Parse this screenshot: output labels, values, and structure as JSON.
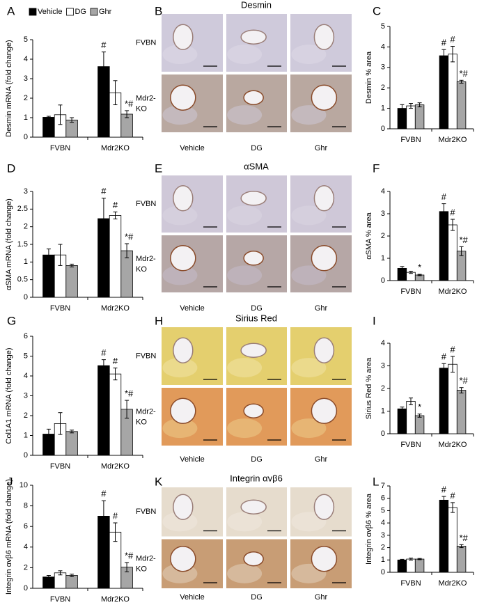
{
  "chart_data": [
    {
      "type": "bar",
      "panel": "A",
      "ylabel": "Desmin mRNA (fold change)",
      "categories": [
        "FVBN",
        "Mdr2KO"
      ],
      "legend": "top-left",
      "series": [
        {
          "name": "Vehicle",
          "color": "#000000",
          "values": [
            1.02,
            3.62
          ],
          "errors": [
            0.05,
            0.75
          ],
          "annotations": [
            null,
            "#"
          ]
        },
        {
          "name": "DG",
          "color": "#ffffff",
          "values": [
            1.15,
            2.28
          ],
          "errors": [
            0.5,
            0.62
          ],
          "annotations": [
            null,
            null
          ]
        },
        {
          "name": "Ghr",
          "color": "#a6a6a6",
          "values": [
            0.88,
            1.18
          ],
          "errors": [
            0.12,
            0.18
          ],
          "annotations": [
            null,
            "*#"
          ]
        }
      ],
      "ylim": [
        0,
        5
      ],
      "yticks": [
        0,
        1,
        2,
        3,
        4,
        5
      ]
    },
    {
      "type": "bar",
      "panel": "C",
      "ylabel": "Desmin % area",
      "categories": [
        "FVBN",
        "Mdr2KO"
      ],
      "series": [
        {
          "color": "#000000",
          "values": [
            1.0,
            3.57
          ],
          "errors": [
            0.18,
            0.3
          ],
          "annotations": [
            null,
            "#"
          ]
        },
        {
          "color": "#ffffff",
          "values": [
            1.12,
            3.65
          ],
          "errors": [
            0.12,
            0.38
          ],
          "annotations": [
            null,
            "#"
          ]
        },
        {
          "color": "#a6a6a6",
          "values": [
            1.17,
            2.3
          ],
          "errors": [
            0.1,
            0.07
          ],
          "annotations": [
            null,
            "*#"
          ]
        }
      ],
      "ylim": [
        0,
        5
      ],
      "yticks": [
        0,
        1,
        2,
        3,
        4,
        5
      ]
    },
    {
      "type": "bar",
      "panel": "D",
      "ylabel": "αSMA mRNA (fold change)",
      "categories": [
        "FVBN",
        "Mdr2KO"
      ],
      "series": [
        {
          "color": "#000000",
          "values": [
            1.2,
            2.23
          ],
          "errors": [
            0.17,
            0.58
          ],
          "annotations": [
            null,
            "#"
          ]
        },
        {
          "color": "#ffffff",
          "values": [
            1.2,
            2.32
          ],
          "errors": [
            0.3,
            0.1
          ],
          "annotations": [
            null,
            "#"
          ]
        },
        {
          "color": "#a6a6a6",
          "values": [
            0.9,
            1.32
          ],
          "errors": [
            0.04,
            0.2
          ],
          "annotations": [
            null,
            "*#"
          ]
        }
      ],
      "ylim": [
        0,
        3
      ],
      "yticks": [
        0,
        0.5,
        1,
        1.5,
        2,
        2.5,
        3
      ]
    },
    {
      "type": "bar",
      "panel": "F",
      "ylabel": "αSMA % area",
      "categories": [
        "FVBN",
        "Mdr2KO"
      ],
      "series": [
        {
          "color": "#000000",
          "values": [
            0.55,
            3.1
          ],
          "errors": [
            0.08,
            0.35
          ],
          "annotations": [
            null,
            "#"
          ]
        },
        {
          "color": "#ffffff",
          "values": [
            0.37,
            2.5
          ],
          "errors": [
            0.05,
            0.25
          ],
          "annotations": [
            null,
            "#"
          ]
        },
        {
          "color": "#a6a6a6",
          "values": [
            0.25,
            1.32
          ],
          "errors": [
            0.03,
            0.2
          ],
          "annotations": [
            "*",
            "*#"
          ]
        }
      ],
      "ylim": [
        0,
        4
      ],
      "yticks": [
        0,
        1,
        2,
        3,
        4
      ]
    },
    {
      "type": "bar",
      "panel": "G",
      "ylabel": "Col1A1 mRNA (fold change)",
      "categories": [
        "FVBN",
        "Mdr2KO"
      ],
      "series": [
        {
          "color": "#000000",
          "values": [
            1.07,
            4.52
          ],
          "errors": [
            0.25,
            0.3
          ],
          "annotations": [
            null,
            "#"
          ]
        },
        {
          "color": "#ffffff",
          "values": [
            1.6,
            4.1
          ],
          "errors": [
            0.55,
            0.3
          ],
          "annotations": [
            null,
            "#"
          ]
        },
        {
          "color": "#a6a6a6",
          "values": [
            1.2,
            2.32
          ],
          "errors": [
            0.07,
            0.45
          ],
          "annotations": [
            null,
            "*#"
          ]
        }
      ],
      "ylim": [
        0,
        6
      ],
      "yticks": [
        0,
        1,
        2,
        3,
        4,
        5,
        6
      ]
    },
    {
      "type": "bar",
      "panel": "I",
      "ylabel": "Sirius Red % area",
      "categories": [
        "FVBN",
        "Mdr2KO"
      ],
      "series": [
        {
          "color": "#000000",
          "values": [
            1.1,
            2.9
          ],
          "errors": [
            0.08,
            0.2
          ],
          "annotations": [
            null,
            "#"
          ]
        },
        {
          "color": "#ffffff",
          "values": [
            1.43,
            3.07
          ],
          "errors": [
            0.15,
            0.35
          ],
          "annotations": [
            null,
            "#"
          ]
        },
        {
          "color": "#a6a6a6",
          "values": [
            0.8,
            1.92
          ],
          "errors": [
            0.07,
            0.12
          ],
          "annotations": [
            "*",
            "*#"
          ]
        }
      ],
      "ylim": [
        0,
        4
      ],
      "yticks": [
        0,
        1,
        2,
        3,
        4
      ]
    },
    {
      "type": "bar",
      "panel": "J",
      "ylabel": "Integrin αvβ6 mRNA (fold change)",
      "categories": [
        "FVBN",
        "Mdr2KO"
      ],
      "series": [
        {
          "color": "#000000",
          "values": [
            1.1,
            7.0
          ],
          "errors": [
            0.15,
            1.5
          ],
          "annotations": [
            null,
            "#"
          ]
        },
        {
          "color": "#ffffff",
          "values": [
            1.5,
            5.45
          ],
          "errors": [
            0.2,
            0.9
          ],
          "annotations": [
            null,
            "#"
          ]
        },
        {
          "color": "#a6a6a6",
          "values": [
            1.25,
            2.05
          ],
          "errors": [
            0.12,
            0.45
          ],
          "annotations": [
            null,
            "*#"
          ]
        }
      ],
      "ylim": [
        0,
        10
      ],
      "yticks": [
        0,
        2,
        4,
        6,
        8,
        10
      ]
    },
    {
      "type": "bar",
      "panel": "L",
      "ylabel": "Integrin αvβ6 % area",
      "categories": [
        "FVBN",
        "Mdr2KO"
      ],
      "series": [
        {
          "color": "#000000",
          "values": [
            1.0,
            5.85
          ],
          "errors": [
            0.05,
            0.3
          ],
          "annotations": [
            null,
            "#"
          ]
        },
        {
          "color": "#ffffff",
          "values": [
            1.07,
            5.25
          ],
          "errors": [
            0.08,
            0.4
          ],
          "annotations": [
            null,
            "#"
          ]
        },
        {
          "color": "#a6a6a6",
          "values": [
            1.07,
            2.12
          ],
          "errors": [
            0.05,
            0.12
          ],
          "annotations": [
            null,
            "*#"
          ]
        }
      ],
      "ylim": [
        0,
        7
      ],
      "yticks": [
        0,
        1,
        2,
        3,
        4,
        5,
        6,
        7
      ]
    }
  ],
  "image_panels": [
    {
      "panel": "B",
      "title": "Desmin",
      "row_labels": [
        [
          "FVBN"
        ],
        [
          "Mdr2-",
          "KO"
        ]
      ],
      "column_labels": [
        "Vehicle",
        "DG",
        "Ghr"
      ]
    },
    {
      "panel": "E",
      "title": "αSMA",
      "row_labels": [
        [
          "FVBN"
        ],
        [
          "Mdr2-",
          "KO"
        ]
      ],
      "column_labels": [
        "Vehicle",
        "DG",
        "Ghr"
      ]
    },
    {
      "panel": "H",
      "title": "Sirius Red",
      "row_labels": [
        [
          "FVBN"
        ],
        [
          "Mdr2-",
          "KO"
        ]
      ],
      "column_labels": [
        "Vehicle",
        "DG",
        "Ghr"
      ]
    },
    {
      "panel": "K",
      "title": "Integrin αvβ6",
      "row_labels": [
        [
          "FVBN"
        ],
        [
          "Mdr2-",
          "KO"
        ]
      ],
      "column_labels": [
        "Vehicle",
        "DG",
        "Ghr"
      ]
    }
  ]
}
